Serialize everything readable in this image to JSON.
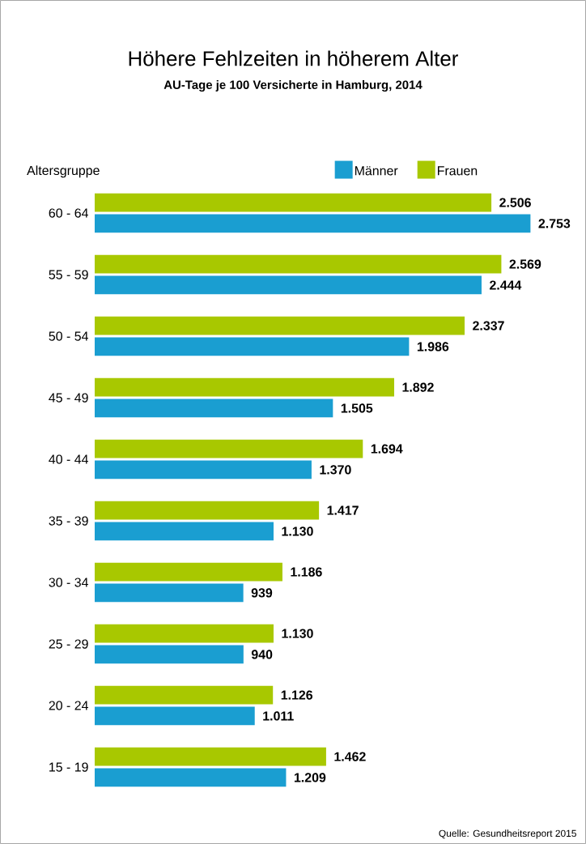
{
  "chart_data": {
    "type": "bar",
    "orientation": "horizontal",
    "title": "Höhere Fehlzeiten in höherem Alter",
    "subtitle": "AU-Tage je 100 Versicherte in Hamburg, 2014",
    "ylabel": "Altersgruppe",
    "legend": "top",
    "categories": [
      "60 - 64",
      "55 - 59",
      "50 - 54",
      "45 - 49",
      "40 - 44",
      "35 - 39",
      "30 - 34",
      "25 - 29",
      "20 - 24",
      "15 - 19"
    ],
    "series": [
      {
        "name": "Männer",
        "color": "#1a9ed1",
        "values": [
          2753,
          2444,
          1986,
          1505,
          1370,
          1130,
          939,
          940,
          1011,
          1209
        ],
        "value_labels": [
          "2.753",
          "2.444",
          "1.986",
          "1.505",
          "1.370",
          "1.130",
          "939",
          "940",
          "1.011",
          "1.209"
        ]
      },
      {
        "name": "Frauen",
        "color": "#a8c800",
        "values": [
          2506,
          2569,
          2337,
          1892,
          1694,
          1417,
          1186,
          1130,
          1126,
          1462
        ],
        "value_labels": [
          "2.506",
          "2.569",
          "2.337",
          "1.892",
          "1.694",
          "1.417",
          "1.186",
          "1.130",
          "1.126",
          "1.462"
        ]
      }
    ],
    "annotations": [
      "Quelle: Gesundheitsreport 2015"
    ]
  }
}
